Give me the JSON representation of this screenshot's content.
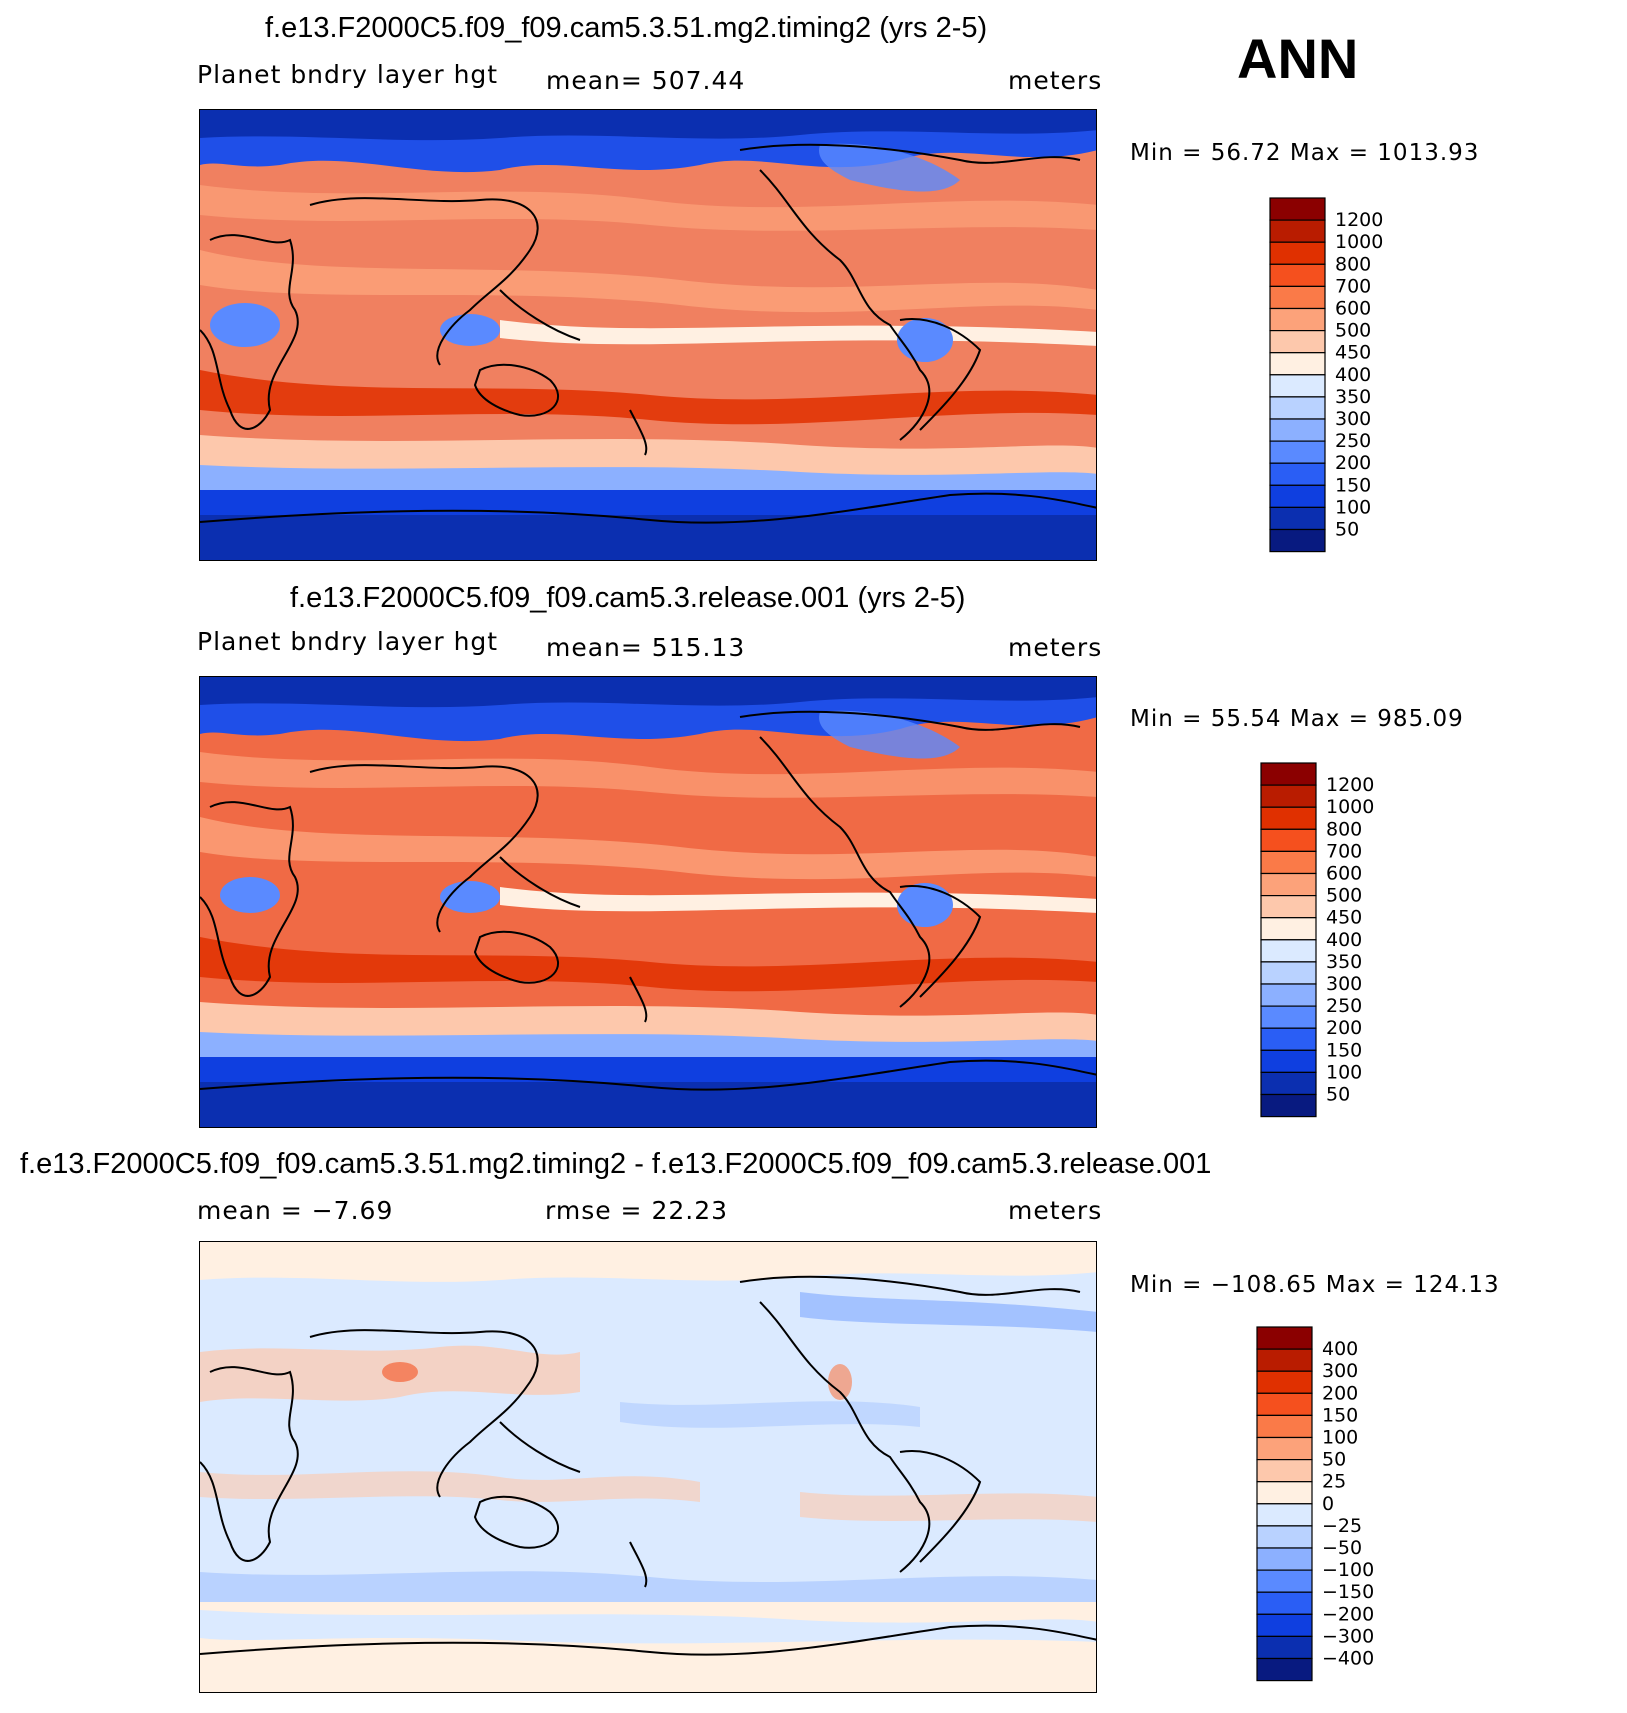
{
  "header": {
    "season": "ANN"
  },
  "panels": [
    {
      "title": "f.e13.F2000C5.f09_f09.cam5.3.51.mg2.timing2 (yrs 2-5)",
      "left_label": "Planet bndry layer hgt",
      "center_label": "mean=  507.44",
      "units": "meters",
      "minmax": "Min =   56.72  Max  =  1013.93",
      "colorbar": {
        "levels": [
          "1200",
          "1000",
          "800",
          "700",
          "600",
          "500",
          "450",
          "400",
          "350",
          "300",
          "250",
          "200",
          "150",
          "100",
          "50"
        ],
        "colors": [
          "#8b0000",
          "#b91c00",
          "#e03000",
          "#f5501e",
          "#fa7a48",
          "#fca27a",
          "#fdc8ac",
          "#fff0e2",
          "#dbeaff",
          "#b9d2ff",
          "#8cb0ff",
          "#5a8aff",
          "#2a5ef5",
          "#0f3fe0",
          "#0b2fb0",
          "#081a80"
        ]
      }
    },
    {
      "title": "f.e13.F2000C5.f09_f09.cam5.3.release.001 (yrs 2-5)",
      "left_label": "Planet bndry layer hgt",
      "center_label": "mean=  515.13",
      "units": "meters",
      "minmax": "Min =   55.54  Max  =  985.09",
      "colorbar": {
        "levels": [
          "1200",
          "1000",
          "800",
          "700",
          "600",
          "500",
          "450",
          "400",
          "350",
          "300",
          "250",
          "200",
          "150",
          "100",
          "50"
        ],
        "colors": [
          "#8b0000",
          "#b91c00",
          "#e03000",
          "#f5501e",
          "#fa7a48",
          "#fca27a",
          "#fdc8ac",
          "#fff0e2",
          "#dbeaff",
          "#b9d2ff",
          "#8cb0ff",
          "#5a8aff",
          "#2a5ef5",
          "#0f3fe0",
          "#0b2fb0",
          "#081a80"
        ]
      }
    },
    {
      "title": "f.e13.F2000C5.f09_f09.cam5.3.51.mg2.timing2 - f.e13.F2000C5.f09_f09.cam5.3.release.001",
      "left_label": "mean =   −7.69",
      "center_label": "rmse =    22.23",
      "units": "meters",
      "minmax": "Min = −108.65  Max  =  124.13",
      "colorbar": {
        "levels": [
          "400",
          "300",
          "200",
          "150",
          "100",
          "50",
          "25",
          "0",
          "−25",
          "−50",
          "−100",
          "−150",
          "−200",
          "−300",
          "−400"
        ],
        "colors": [
          "#8b0000",
          "#b91c00",
          "#e03000",
          "#f5501e",
          "#fa7a48",
          "#fca27a",
          "#fdc8ac",
          "#fff0e2",
          "#dbeaff",
          "#b9d2ff",
          "#8cb0ff",
          "#5a8aff",
          "#2a5ef5",
          "#0f3fe0",
          "#0b2fb0",
          "#081a80"
        ]
      }
    }
  ]
}
